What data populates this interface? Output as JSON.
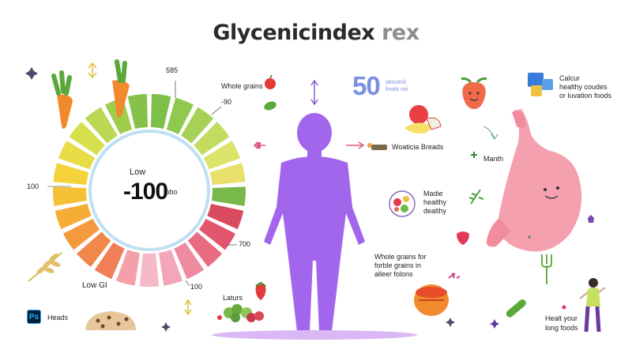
{
  "title": {
    "main": "Glycenicindex",
    "suffix": " rex"
  },
  "wheel": {
    "top_value": "585",
    "upper_right_value": "-90",
    "left_value": "100",
    "lower_right_value": "700",
    "bottom_value": "100",
    "bottom_label": "Low GI",
    "center_label": "Low",
    "center_value": "-100",
    "center_unit": "tobo",
    "colors": [
      "#7cc04a",
      "#8fca4e",
      "#a6d157",
      "#c3dc60",
      "#dbe468",
      "#e8e06a",
      "#79b84a",
      "#d94a5e",
      "#e2566e",
      "#e96b82",
      "#ef8aa0",
      "#f2a6b8",
      "#f5b9c7",
      "#f5a0a8",
      "#f07f5a",
      "#f2874a",
      "#f39a3d",
      "#f5ad35",
      "#f6c035",
      "#f4d23a",
      "#e9dc46",
      "#d8df4d",
      "#bcd752",
      "#9ecd4e",
      "#86c24a"
    ]
  },
  "labels": {
    "whole_grains": "Whole grains",
    "fifty_value": "50",
    "fifty_text": [
      "obscenil",
      "foods noi"
    ],
    "whole_breads": "Woaticia Breads",
    "month": "Manth",
    "madie": [
      "Madie",
      "healthy",
      "dealthy"
    ],
    "whole_grains_for": [
      "Whole grains for",
      "forble grains in",
      "alleer folons"
    ],
    "laturs": "Laturs",
    "heads": "Heads",
    "calcur": [
      "Calcur",
      "healthy coudes",
      "or luvation foods"
    ],
    "health": [
      "Healt your",
      "long foods"
    ]
  },
  "icons": [
    "carrot-icon",
    "apple-icon",
    "strawberry-icon",
    "grape-icon",
    "wheat-icon",
    "bread-icon",
    "stomach-icon",
    "person-silhouette-icon",
    "blueberries-icon",
    "bowl-icon",
    "fork-icon",
    "cucumber-icon",
    "woman-icon",
    "photoshop-icon"
  ]
}
